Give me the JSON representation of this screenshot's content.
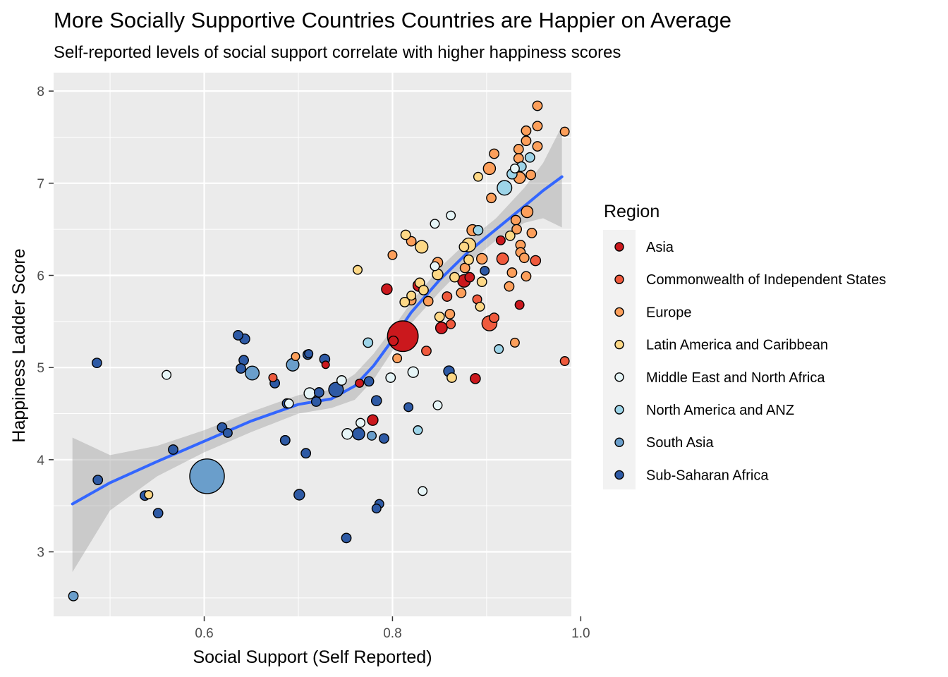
{
  "chart_data": {
    "type": "scatter",
    "title": "More Socially Supportive Countries Countries are Happier on Average",
    "subtitle": "Self-reported levels of social support correlate with higher happiness scores",
    "xlabel": "Social Support (Self Reported)",
    "ylabel": "Happiness Ladder Score",
    "xlim": [
      0.44,
      0.99
    ],
    "ylim": [
      2.3,
      8.2
    ],
    "x_ticks": [
      0.6,
      0.8,
      1.0
    ],
    "x_tick_labels": [
      "0.6",
      "0.8",
      "1.0"
    ],
    "y_ticks": [
      3,
      4,
      5,
      6,
      7,
      8
    ],
    "y_tick_labels": [
      "3",
      "4",
      "5",
      "6",
      "7",
      "8"
    ],
    "grid": true,
    "legend": {
      "title": "Region",
      "placement": "right",
      "entries": [
        {
          "name": "Asia",
          "color": "#CB181D"
        },
        {
          "name": "Commonwealth of Independent States",
          "color": "#EF5A3D"
        },
        {
          "name": "Europe",
          "color": "#FC9F5B"
        },
        {
          "name": "Latin America and Caribbean",
          "color": "#FDD886"
        },
        {
          "name": "Middle East and North Africa",
          "color": "#E6F5F7"
        },
        {
          "name": "North America and ANZ",
          "color": "#9DD4E8"
        },
        {
          "name": "South Asia",
          "color": "#6A9ECB"
        },
        {
          "name": "Sub-Saharan Africa",
          "color": "#2E5AA5"
        }
      ]
    },
    "colors": {
      "panel": "#EBEBEB",
      "gridline": "#FFFFFF",
      "smooth_line": "#3366FF",
      "ribbon": "#999999"
    },
    "smooth": {
      "x": [
        0.46,
        0.5,
        0.55,
        0.6,
        0.65,
        0.7,
        0.735,
        0.76,
        0.78,
        0.8,
        0.82,
        0.85,
        0.88,
        0.91,
        0.94,
        0.96,
        0.98
      ],
      "y": [
        3.52,
        3.75,
        3.98,
        4.2,
        4.42,
        4.6,
        4.66,
        4.8,
        5.02,
        5.3,
        5.6,
        5.95,
        6.25,
        6.5,
        6.75,
        6.92,
        7.07
      ],
      "ymin": [
        2.78,
        3.45,
        3.82,
        4.08,
        4.3,
        4.5,
        4.56,
        4.65,
        4.87,
        5.18,
        5.48,
        5.82,
        6.13,
        6.38,
        6.57,
        6.62,
        6.52
      ],
      "ymax": [
        4.24,
        4.05,
        4.15,
        4.32,
        4.52,
        4.7,
        4.76,
        4.93,
        5.15,
        5.42,
        5.71,
        6.08,
        6.37,
        6.62,
        6.95,
        7.22,
        7.62
      ]
    },
    "series": [
      {
        "name": "Asia",
        "points": [
          {
            "x": 0.811,
            "y": 5.34,
            "size": 8.4
          },
          {
            "x": 0.876,
            "y": 5.94,
            "size": 1.4
          },
          {
            "x": 0.828,
            "y": 5.89,
            "size": 1.2
          },
          {
            "x": 0.794,
            "y": 5.85,
            "size": 1.0
          },
          {
            "x": 0.852,
            "y": 5.43,
            "size": 1.2
          },
          {
            "x": 0.888,
            "y": 4.88,
            "size": 0.9
          },
          {
            "x": 0.779,
            "y": 4.43,
            "size": 1.0
          },
          {
            "x": 0.935,
            "y": 5.68,
            "size": 0.7
          },
          {
            "x": 0.915,
            "y": 6.38,
            "size": 0.7
          },
          {
            "x": 0.801,
            "y": 5.29,
            "size": 0.8
          },
          {
            "x": 0.765,
            "y": 4.83,
            "size": 0.6
          },
          {
            "x": 0.729,
            "y": 5.03,
            "size": 0.5
          },
          {
            "x": 0.882,
            "y": 5.98,
            "size": 0.8
          }
        ]
      },
      {
        "name": "Commonwealth of Independent States",
        "points": [
          {
            "x": 0.903,
            "y": 5.48,
            "size": 2.0
          },
          {
            "x": 0.917,
            "y": 6.18,
            "size": 1.2
          },
          {
            "x": 0.908,
            "y": 5.54,
            "size": 0.8
          },
          {
            "x": 0.983,
            "y": 5.07,
            "size": 0.7
          },
          {
            "x": 0.836,
            "y": 5.18,
            "size": 0.8
          },
          {
            "x": 0.858,
            "y": 5.77,
            "size": 0.8
          },
          {
            "x": 0.89,
            "y": 5.74,
            "size": 0.7
          },
          {
            "x": 0.862,
            "y": 5.47,
            "size": 0.7
          },
          {
            "x": 0.952,
            "y": 6.16,
            "size": 0.9
          },
          {
            "x": 0.673,
            "y": 4.89,
            "size": 0.6
          }
        ]
      },
      {
        "name": "Europe",
        "points": [
          {
            "x": 0.954,
            "y": 7.84,
            "size": 0.8
          },
          {
            "x": 0.954,
            "y": 7.62,
            "size": 0.8
          },
          {
            "x": 0.942,
            "y": 7.57,
            "size": 0.8
          },
          {
            "x": 0.983,
            "y": 7.56,
            "size": 0.7
          },
          {
            "x": 0.942,
            "y": 7.46,
            "size": 0.8
          },
          {
            "x": 0.954,
            "y": 7.4,
            "size": 0.8
          },
          {
            "x": 0.934,
            "y": 7.37,
            "size": 0.8
          },
          {
            "x": 0.908,
            "y": 7.32,
            "size": 0.8
          },
          {
            "x": 0.934,
            "y": 7.27,
            "size": 0.8
          },
          {
            "x": 0.903,
            "y": 7.16,
            "size": 1.3
          },
          {
            "x": 0.947,
            "y": 7.09,
            "size": 0.8
          },
          {
            "x": 0.935,
            "y": 7.06,
            "size": 1.2
          },
          {
            "x": 0.943,
            "y": 6.69,
            "size": 1.2
          },
          {
            "x": 0.931,
            "y": 6.6,
            "size": 0.8
          },
          {
            "x": 0.885,
            "y": 6.49,
            "size": 1.1
          },
          {
            "x": 0.948,
            "y": 6.46,
            "size": 0.8
          },
          {
            "x": 0.932,
            "y": 6.5,
            "size": 0.8
          },
          {
            "x": 0.936,
            "y": 6.33,
            "size": 0.8
          },
          {
            "x": 0.936,
            "y": 6.25,
            "size": 0.8
          },
          {
            "x": 0.94,
            "y": 6.19,
            "size": 0.8
          },
          {
            "x": 0.895,
            "y": 6.18,
            "size": 1.0
          },
          {
            "x": 0.848,
            "y": 6.14,
            "size": 0.9
          },
          {
            "x": 0.927,
            "y": 6.03,
            "size": 0.8
          },
          {
            "x": 0.942,
            "y": 5.99,
            "size": 0.8
          },
          {
            "x": 0.924,
            "y": 5.88,
            "size": 0.8
          },
          {
            "x": 0.873,
            "y": 5.81,
            "size": 0.8
          },
          {
            "x": 0.838,
            "y": 5.72,
            "size": 0.8
          },
          {
            "x": 0.861,
            "y": 5.58,
            "size": 0.8
          },
          {
            "x": 0.877,
            "y": 6.08,
            "size": 0.8
          },
          {
            "x": 0.93,
            "y": 5.27,
            "size": 0.7
          },
          {
            "x": 0.8,
            "y": 6.22,
            "size": 0.7
          },
          {
            "x": 0.82,
            "y": 6.37,
            "size": 0.8
          },
          {
            "x": 0.905,
            "y": 6.84,
            "size": 0.8
          },
          {
            "x": 0.805,
            "y": 5.1,
            "size": 0.7
          },
          {
            "x": 0.697,
            "y": 5.12,
            "size": 0.6
          },
          {
            "x": 0.82,
            "y": 5.73,
            "size": 0.8
          }
        ]
      },
      {
        "name": "Latin America and Caribbean",
        "points": [
          {
            "x": 0.881,
            "y": 6.33,
            "size": 1.7
          },
          {
            "x": 0.831,
            "y": 6.31,
            "size": 1.4
          },
          {
            "x": 0.814,
            "y": 6.44,
            "size": 0.8
          },
          {
            "x": 0.848,
            "y": 6.01,
            "size": 1.0
          },
          {
            "x": 0.829,
            "y": 5.92,
            "size": 0.8
          },
          {
            "x": 0.833,
            "y": 5.84,
            "size": 0.8
          },
          {
            "x": 0.813,
            "y": 5.71,
            "size": 0.8
          },
          {
            "x": 0.866,
            "y": 5.98,
            "size": 0.8
          },
          {
            "x": 0.895,
            "y": 5.93,
            "size": 0.8
          },
          {
            "x": 0.85,
            "y": 5.55,
            "size": 0.8
          },
          {
            "x": 0.893,
            "y": 5.66,
            "size": 0.7
          },
          {
            "x": 0.891,
            "y": 7.07,
            "size": 0.7
          },
          {
            "x": 0.763,
            "y": 6.06,
            "size": 0.7
          },
          {
            "x": 0.863,
            "y": 4.89,
            "size": 0.8
          },
          {
            "x": 0.541,
            "y": 3.62,
            "size": 0.6
          },
          {
            "x": 0.925,
            "y": 6.43,
            "size": 0.8
          },
          {
            "x": 0.881,
            "y": 6.17,
            "size": 0.8
          },
          {
            "x": 0.876,
            "y": 6.31,
            "size": 0.8
          },
          {
            "x": 0.82,
            "y": 5.78,
            "size": 0.7
          }
        ]
      },
      {
        "name": "Middle East and North Africa",
        "points": [
          {
            "x": 0.862,
            "y": 6.65,
            "size": 0.7
          },
          {
            "x": 0.845,
            "y": 6.56,
            "size": 0.7
          },
          {
            "x": 0.93,
            "y": 7.16,
            "size": 0.7
          },
          {
            "x": 0.822,
            "y": 4.95,
            "size": 1.0
          },
          {
            "x": 0.798,
            "y": 4.89,
            "size": 0.8
          },
          {
            "x": 0.746,
            "y": 4.86,
            "size": 0.8
          },
          {
            "x": 0.712,
            "y": 4.72,
            "size": 1.1
          },
          {
            "x": 0.752,
            "y": 4.28,
            "size": 1.0
          },
          {
            "x": 0.766,
            "y": 4.4,
            "size": 0.7
          },
          {
            "x": 0.848,
            "y": 4.59,
            "size": 0.7
          },
          {
            "x": 0.832,
            "y": 3.66,
            "size": 0.7
          },
          {
            "x": 0.56,
            "y": 4.92,
            "size": 0.7
          },
          {
            "x": 0.69,
            "y": 4.61,
            "size": 0.7
          },
          {
            "x": 0.845,
            "y": 6.1,
            "size": 0.7
          }
        ]
      },
      {
        "name": "North America and ANZ",
        "points": [
          {
            "x": 0.919,
            "y": 6.95,
            "size": 1.9
          },
          {
            "x": 0.927,
            "y": 7.1,
            "size": 0.9
          },
          {
            "x": 0.946,
            "y": 7.28,
            "size": 0.8
          },
          {
            "x": 0.937,
            "y": 7.18,
            "size": 0.8
          },
          {
            "x": 0.891,
            "y": 6.49,
            "size": 0.8
          },
          {
            "x": 0.774,
            "y": 5.27,
            "size": 0.8
          },
          {
            "x": 0.913,
            "y": 5.2,
            "size": 0.7
          },
          {
            "x": 0.827,
            "y": 4.32,
            "size": 0.7
          }
        ]
      },
      {
        "name": "South Asia",
        "points": [
          {
            "x": 0.603,
            "y": 3.82,
            "size": 10.7
          },
          {
            "x": 0.651,
            "y": 4.94,
            "size": 1.7
          },
          {
            "x": 0.694,
            "y": 5.03,
            "size": 1.4
          },
          {
            "x": 0.461,
            "y": 2.52,
            "size": 0.8
          },
          {
            "x": 0.686,
            "y": 4.21,
            "size": 0.8
          },
          {
            "x": 0.778,
            "y": 4.26,
            "size": 0.7
          }
        ]
      },
      {
        "name": "Sub-Saharan Africa",
        "points": [
          {
            "x": 0.74,
            "y": 4.76,
            "size": 1.9
          },
          {
            "x": 0.764,
            "y": 4.28,
            "size": 1.3
          },
          {
            "x": 0.86,
            "y": 4.96,
            "size": 1.0
          },
          {
            "x": 0.783,
            "y": 4.64,
            "size": 0.9
          },
          {
            "x": 0.701,
            "y": 3.62,
            "size": 1.0
          },
          {
            "x": 0.728,
            "y": 5.09,
            "size": 0.9
          },
          {
            "x": 0.71,
            "y": 5.14,
            "size": 0.8
          },
          {
            "x": 0.643,
            "y": 5.31,
            "size": 0.9
          },
          {
            "x": 0.636,
            "y": 5.35,
            "size": 0.8
          },
          {
            "x": 0.642,
            "y": 5.08,
            "size": 0.8
          },
          {
            "x": 0.639,
            "y": 4.99,
            "size": 0.8
          },
          {
            "x": 0.675,
            "y": 4.83,
            "size": 0.8
          },
          {
            "x": 0.722,
            "y": 4.73,
            "size": 0.8
          },
          {
            "x": 0.719,
            "y": 4.63,
            "size": 0.8
          },
          {
            "x": 0.688,
            "y": 4.61,
            "size": 0.8
          },
          {
            "x": 0.775,
            "y": 4.85,
            "size": 0.8
          },
          {
            "x": 0.619,
            "y": 4.35,
            "size": 0.8
          },
          {
            "x": 0.625,
            "y": 4.29,
            "size": 0.7
          },
          {
            "x": 0.567,
            "y": 4.11,
            "size": 0.8
          },
          {
            "x": 0.708,
            "y": 4.07,
            "size": 0.8
          },
          {
            "x": 0.791,
            "y": 4.23,
            "size": 0.8
          },
          {
            "x": 0.817,
            "y": 4.57,
            "size": 0.7
          },
          {
            "x": 0.686,
            "y": 4.21,
            "size": 0.8
          },
          {
            "x": 0.487,
            "y": 3.78,
            "size": 0.8
          },
          {
            "x": 0.537,
            "y": 3.61,
            "size": 0.8
          },
          {
            "x": 0.551,
            "y": 3.42,
            "size": 0.8
          },
          {
            "x": 0.786,
            "y": 3.52,
            "size": 0.7
          },
          {
            "x": 0.783,
            "y": 3.47,
            "size": 0.7
          },
          {
            "x": 0.751,
            "y": 3.15,
            "size": 0.8
          },
          {
            "x": 0.486,
            "y": 5.05,
            "size": 0.8
          },
          {
            "x": 0.898,
            "y": 6.05,
            "size": 0.7
          },
          {
            "x": 0.711,
            "y": 5.15,
            "size": 0.6
          }
        ]
      }
    ]
  }
}
